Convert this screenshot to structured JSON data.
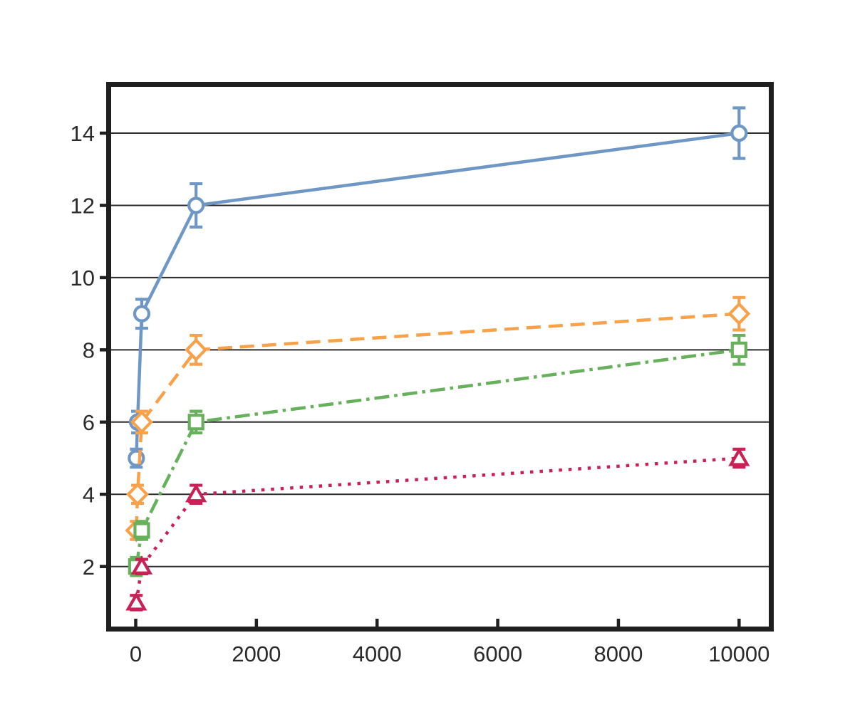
{
  "figure": {
    "background": "#ffffff",
    "title": "",
    "legend": "none"
  },
  "chart_data": {
    "type": "line",
    "title": "",
    "xlabel": "",
    "ylabel": "",
    "xlim": [
      -490,
      10575
    ],
    "ylim": [
      0.2,
      15.42
    ],
    "xticks": [
      0,
      2000,
      4000,
      6000,
      8000,
      10000
    ],
    "yticks": [
      2,
      4,
      6,
      8,
      10,
      12,
      14
    ],
    "grid": "horizontal-only",
    "grid_color": "#2b2b2b",
    "axis_frame_color": "#1f1f1f",
    "tick_label_color": "#2a2a2a",
    "marker_fill": "#ffffff",
    "series": [
      {
        "name": "circle-solid-blue",
        "color": "#6e97c6",
        "marker": "circle",
        "linestyle": "solid",
        "x": [
          10,
          30,
          100,
          1000,
          10000
        ],
        "y": [
          5,
          6,
          9,
          12,
          14
        ],
        "yerr": [
          0.25,
          0.3,
          0.4,
          0.6,
          0.7
        ]
      },
      {
        "name": "diamond-dashed-orange",
        "color": "#f7a14a",
        "marker": "diamond",
        "linestyle": "dashed",
        "x": [
          10,
          30,
          100,
          1000,
          10000
        ],
        "y": [
          3,
          4,
          6,
          8,
          9
        ],
        "yerr": [
          0.25,
          0.25,
          0.3,
          0.4,
          0.45
        ]
      },
      {
        "name": "square-dashdot-green",
        "color": "#68b15c",
        "marker": "square",
        "linestyle": "dashdot",
        "x": [
          10,
          100,
          1000,
          10000
        ],
        "y": [
          2,
          3,
          6,
          8
        ],
        "yerr": [
          0.25,
          0.25,
          0.3,
          0.4
        ]
      },
      {
        "name": "triangle-dotted-crimson",
        "color": "#c92156",
        "marker": "triangle",
        "linestyle": "dotted",
        "x": [
          10,
          100,
          1000,
          10000
        ],
        "y": [
          1,
          2,
          4,
          5
        ],
        "yerr": [
          0.2,
          0.2,
          0.25,
          0.25
        ]
      }
    ]
  }
}
